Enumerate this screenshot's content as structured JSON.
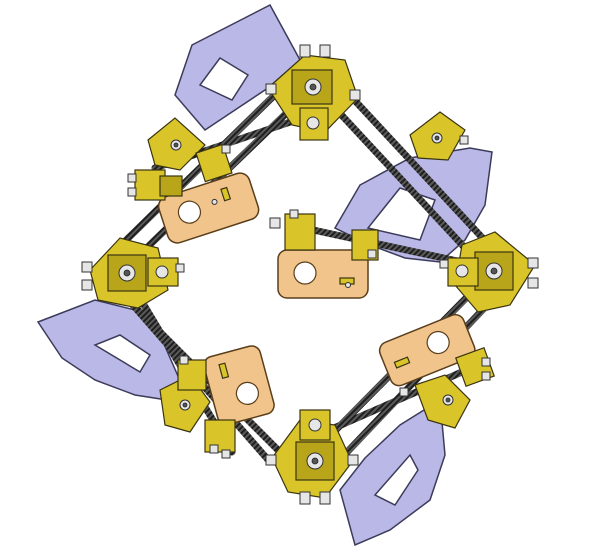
{
  "figure": {
    "description_visible_text": "",
    "colors": {
      "bracket": "#d9c52a",
      "bracket_shade": "#b8a51a",
      "bracket_edge": "#3a3410",
      "sector": "#b9b8e6",
      "sector_edge": "#3c3b5a",
      "plate": "#f0c48a",
      "plate_edge": "#5a3e1c",
      "rod": "#4a4a4a",
      "rod_dark": "#1e1e1e",
      "hardware": "#e6e6e6",
      "hardware_edge": "#333333"
    }
  }
}
